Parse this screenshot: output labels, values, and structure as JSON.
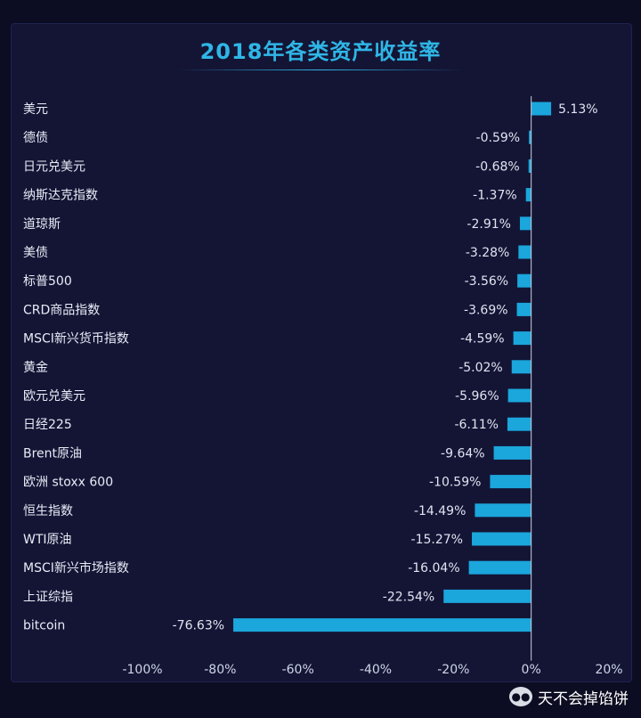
{
  "title": "2018年各类资产收益率",
  "watermark": "天不会掉馅饼",
  "colors": {
    "bar": "#1ba6dc",
    "title": "#2fb6e6",
    "background": "#141535"
  },
  "chart_data": {
    "type": "bar",
    "orientation": "horizontal",
    "title": "2018年各类资产收益率",
    "categories": [
      "美元",
      "德债",
      "日元兑美元",
      "纳斯达克指数",
      "道琼斯",
      "美债",
      "标普500",
      "CRD商品指数",
      "MSCI新兴货币指数",
      "黄金",
      "欧元兑美元",
      "日经225",
      "Brent原油",
      "欧洲 stoxx 600",
      "恒生指数",
      "WTI原油",
      "MSCI新兴市场指数",
      "上证综指",
      "bitcoin"
    ],
    "values": [
      5.13,
      -0.59,
      -0.68,
      -1.37,
      -2.91,
      -3.28,
      -3.56,
      -3.69,
      -4.59,
      -5.02,
      -5.96,
      -6.11,
      -9.64,
      -10.59,
      -14.49,
      -15.27,
      -16.04,
      -22.54,
      -76.63
    ],
    "value_labels": [
      "5.13%",
      "-0.59%",
      "-0.68%",
      "-1.37%",
      "-2.91%",
      "-3.28%",
      "-3.56%",
      "-3.69%",
      "-4.59%",
      "-5.02%",
      "-5.96%",
      "-6.11%",
      "-9.64%",
      "-10.59%",
      "-14.49%",
      "-15.27%",
      "-16.04%",
      "-22.54%",
      "-76.63%"
    ],
    "xlim": [
      -100,
      20
    ],
    "x_ticks": [
      -100,
      -80,
      -60,
      -40,
      -20,
      0,
      20
    ],
    "x_tick_labels": [
      "-100%",
      "-80%",
      "-60%",
      "-40%",
      "-20%",
      "0%",
      "20%"
    ],
    "xlabel": "",
    "ylabel": "",
    "grid": false,
    "legend": "none"
  }
}
